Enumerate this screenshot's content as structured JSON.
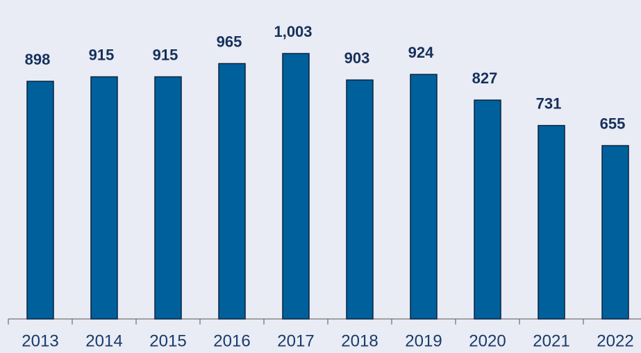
{
  "chart_data": {
    "type": "bar",
    "categories": [
      "2013",
      "2014",
      "2015",
      "2016",
      "2017",
      "2018",
      "2019",
      "2020",
      "2021",
      "2022"
    ],
    "values": [
      898,
      915,
      915,
      965,
      1003,
      903,
      924,
      827,
      731,
      655
    ],
    "value_labels": [
      "898",
      "915",
      "915",
      "965",
      "1,003",
      "903",
      "924",
      "827",
      "731",
      "655"
    ],
    "color": "#00609c",
    "ylim": [
      0,
      1200
    ]
  }
}
